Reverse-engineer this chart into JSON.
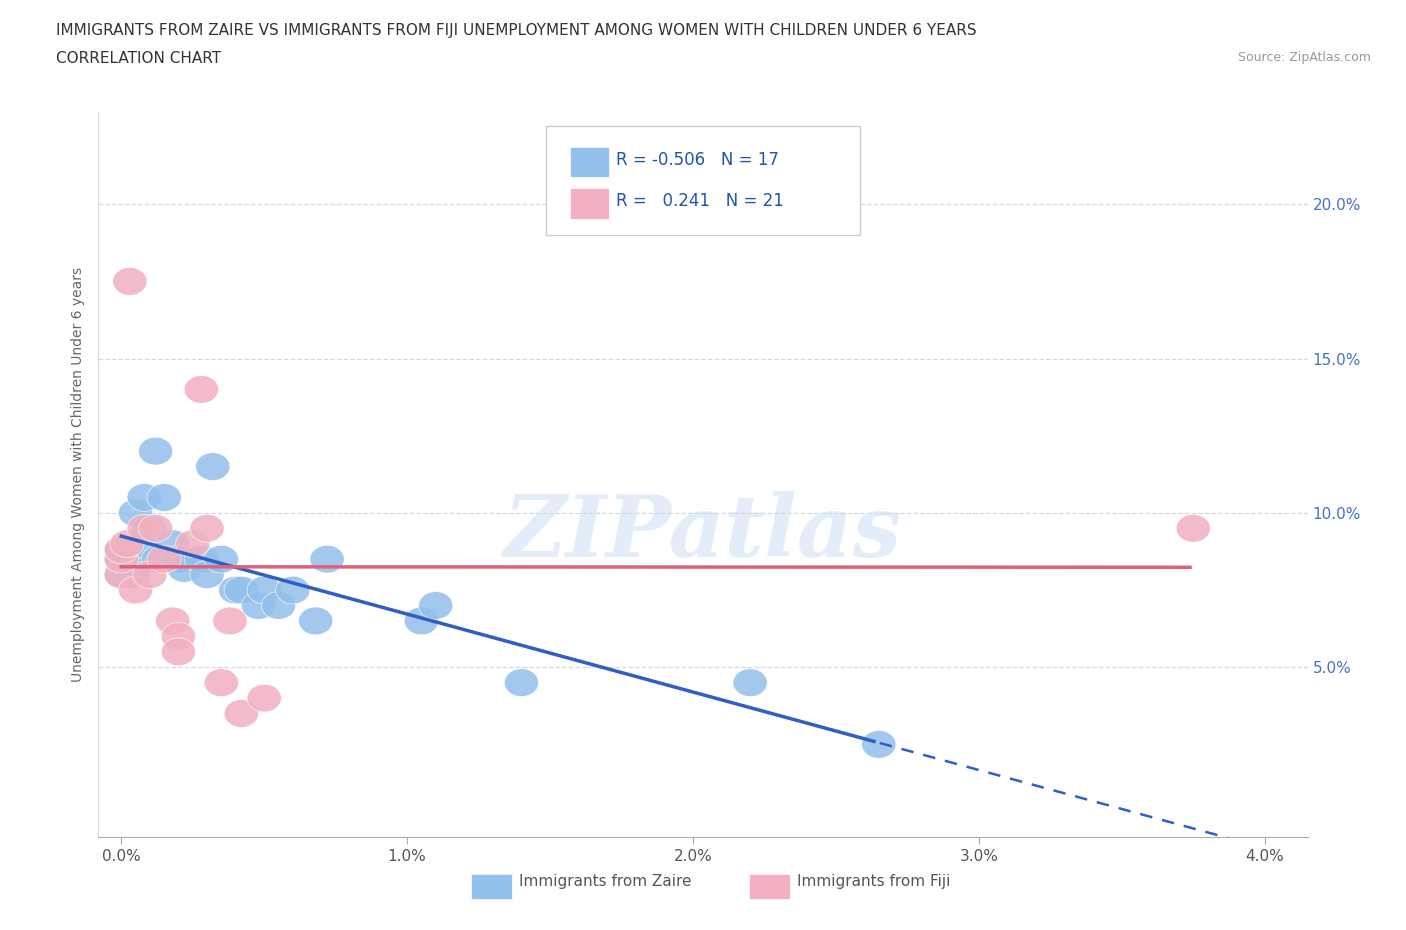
{
  "title_line1": "IMMIGRANTS FROM ZAIRE VS IMMIGRANTS FROM FIJI UNEMPLOYMENT AMONG WOMEN WITH CHILDREN UNDER 6 YEARS",
  "title_line2": "CORRELATION CHART",
  "source": "Source: ZipAtlas.com",
  "ylabel": "Unemployment Among Women with Children Under 6 years",
  "watermark": "ZIPatlas",
  "zaire_x": [
    0.0,
    0.0,
    0.0,
    0.02,
    0.02,
    0.04,
    0.05,
    0.07,
    0.08,
    0.1,
    0.12,
    0.13,
    0.15,
    0.18,
    0.2,
    0.22,
    0.28,
    0.3,
    0.32,
    0.35,
    0.4,
    0.42,
    0.48,
    0.5,
    0.55,
    0.6,
    0.68,
    0.72,
    1.05,
    1.1,
    1.4,
    2.2,
    2.65
  ],
  "zaire_y": [
    8.0,
    8.5,
    8.8,
    8.2,
    8.6,
    8.0,
    10.0,
    9.0,
    10.5,
    9.5,
    12.0,
    8.5,
    10.5,
    9.0,
    8.5,
    8.2,
    8.5,
    8.0,
    11.5,
    8.5,
    7.5,
    7.5,
    7.0,
    7.5,
    7.0,
    7.5,
    6.5,
    8.5,
    6.5,
    7.0,
    4.5,
    4.5,
    2.5
  ],
  "fiji_x": [
    0.0,
    0.0,
    0.0,
    0.02,
    0.03,
    0.05,
    0.08,
    0.1,
    0.12,
    0.15,
    0.18,
    0.2,
    0.2,
    0.25,
    0.28,
    0.3,
    0.35,
    0.38,
    0.42,
    0.5,
    3.75
  ],
  "fiji_y": [
    8.0,
    8.5,
    8.8,
    9.0,
    17.5,
    7.5,
    9.5,
    8.0,
    9.5,
    8.5,
    6.5,
    6.0,
    5.5,
    9.0,
    14.0,
    9.5,
    4.5,
    6.5,
    3.5,
    4.0,
    9.5
  ],
  "zaire_color": "#92c0ea",
  "fiji_color": "#f2b0c0",
  "zaire_line_color": "#2f5fc4",
  "fiji_line_color": "#e0607a",
  "background_color": "#ffffff",
  "grid_color": "#d0d8e8"
}
